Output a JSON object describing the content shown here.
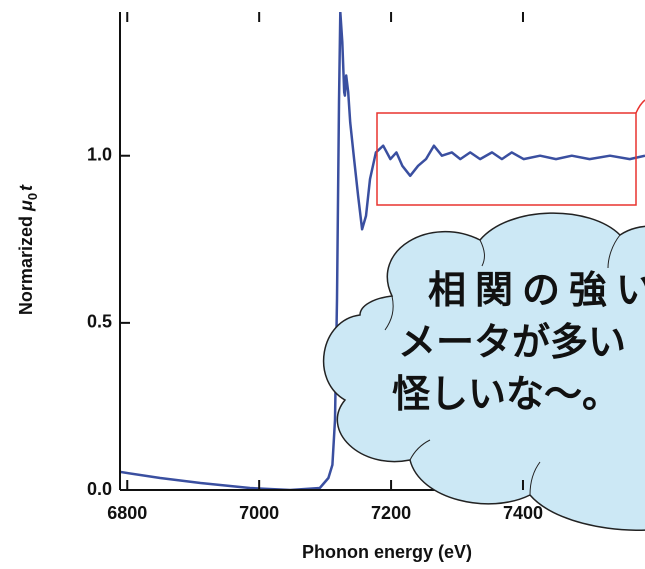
{
  "chart_data": {
    "type": "line",
    "xlabel": "Phonon energy (eV)",
    "ylabel": {
      "text": "Normarized",
      "symbol": "μ",
      "subscript": "0",
      "variable": "t"
    },
    "x": [
      6789,
      6850,
      6911,
      6986,
      7047,
      7092,
      7105,
      7111,
      7115,
      7118,
      7121,
      7123,
      7126,
      7129,
      7130,
      7132,
      7135,
      7138,
      7144,
      7150,
      7156,
      7162,
      7168,
      7177,
      7188,
      7199,
      7208,
      7217,
      7229,
      7241,
      7253,
      7265,
      7277,
      7292,
      7305,
      7320,
      7335,
      7353,
      7368,
      7383,
      7401,
      7426,
      7450,
      7474,
      7501,
      7532,
      7562,
      7585
    ],
    "values": [
      0.054,
      0.036,
      0.021,
      0.006,
      0.0,
      0.006,
      0.036,
      0.075,
      0.21,
      0.57,
      1.16,
      1.43,
      1.34,
      1.19,
      1.18,
      1.24,
      1.19,
      1.1,
      0.99,
      0.88,
      0.78,
      0.82,
      0.93,
      1.01,
      1.03,
      0.99,
      1.01,
      0.97,
      0.94,
      0.97,
      0.99,
      1.03,
      1.0,
      1.01,
      0.99,
      1.01,
      0.99,
      1.01,
      0.99,
      1.01,
      0.99,
      1.0,
      0.99,
      1.0,
      0.99,
      1.0,
      0.99,
      1.0
    ],
    "color": "#3a4fa0",
    "xlim": [
      6789,
      7585
    ],
    "ylim": [
      0,
      1.43
    ],
    "xticks": [
      6800,
      7000,
      7200,
      7400
    ],
    "yticks": [
      {
        "value": 0,
        "label": "0.0"
      },
      {
        "value": 0.5,
        "label": "0.5"
      },
      {
        "value": 1.0,
        "label": "1.0"
      }
    ],
    "callout": [
      "相関の強い",
      "メータが多い",
      "怪しいな〜。"
    ]
  }
}
